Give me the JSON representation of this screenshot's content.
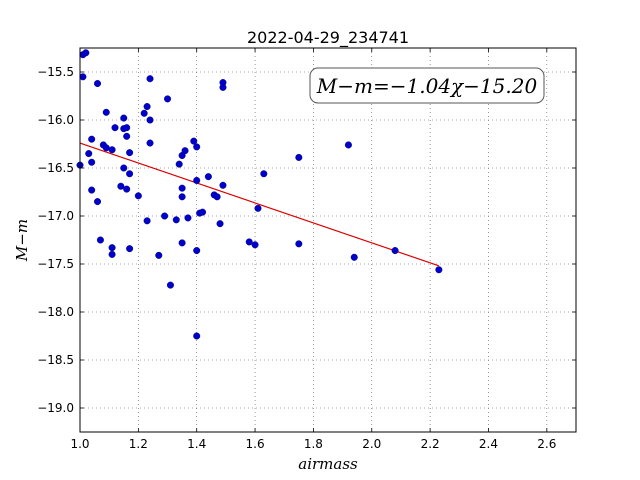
{
  "chart_data": {
    "type": "scatter",
    "title": "2022-04-29_234741",
    "xlabel": "airmass",
    "ylabel": "M−m",
    "xlim": [
      1.0,
      2.7
    ],
    "ylim": [
      -15.25,
      -19.25
    ],
    "y_inverted": true,
    "x_ticks": [
      1.0,
      1.2,
      1.4,
      1.6,
      1.8,
      2.0,
      2.2,
      2.4,
      2.6
    ],
    "x_tick_labels": [
      "1.0",
      "1.2",
      "1.4",
      "1.6",
      "1.8",
      "2.0",
      "2.2",
      "2.4",
      "2.6"
    ],
    "y_ticks": [
      -15.5,
      -16.0,
      -16.5,
      -17.0,
      -17.5,
      -18.0,
      -18.5,
      -19.0
    ],
    "y_tick_labels": [
      "−15.5",
      "−16.0",
      "−16.5",
      "−17.0",
      "−17.5",
      "−18.0",
      "−18.5",
      "−19.0"
    ],
    "grid": true,
    "annotation": "M−m=−1.04χ−15.20",
    "series": [
      {
        "color": "#0000cc",
        "points": [
          [
            1.01,
            -15.32
          ],
          [
            1.02,
            -15.3
          ],
          [
            1.01,
            -15.55
          ],
          [
            1.06,
            -15.62
          ],
          [
            1.09,
            -15.92
          ],
          [
            1.0,
            -16.47
          ],
          [
            1.04,
            -16.2
          ],
          [
            1.03,
            -16.35
          ],
          [
            1.04,
            -16.44
          ],
          [
            1.04,
            -16.73
          ],
          [
            1.06,
            -16.85
          ],
          [
            1.07,
            -17.25
          ],
          [
            1.08,
            -16.26
          ],
          [
            1.09,
            -16.29
          ],
          [
            1.11,
            -16.31
          ],
          [
            1.12,
            -16.08
          ],
          [
            1.14,
            -16.69
          ],
          [
            1.15,
            -15.98
          ],
          [
            1.15,
            -16.09
          ],
          [
            1.16,
            -16.08
          ],
          [
            1.16,
            -16.17
          ],
          [
            1.15,
            -16.5
          ],
          [
            1.16,
            -16.72
          ],
          [
            1.17,
            -16.56
          ],
          [
            1.17,
            -16.34
          ],
          [
            1.11,
            -17.33
          ],
          [
            1.11,
            -17.4
          ],
          [
            1.17,
            -17.34
          ],
          [
            1.2,
            -16.79
          ],
          [
            1.22,
            -15.93
          ],
          [
            1.23,
            -15.86
          ],
          [
            1.24,
            -15.57
          ],
          [
            1.24,
            -16.0
          ],
          [
            1.24,
            -16.24
          ],
          [
            1.23,
            -17.05
          ],
          [
            1.27,
            -17.41
          ],
          [
            1.29,
            -17.0
          ],
          [
            1.3,
            -15.78
          ],
          [
            1.31,
            -17.72
          ],
          [
            1.33,
            -17.04
          ],
          [
            1.34,
            -16.46
          ],
          [
            1.35,
            -16.37
          ],
          [
            1.36,
            -16.32
          ],
          [
            1.35,
            -16.71
          ],
          [
            1.35,
            -16.8
          ],
          [
            1.37,
            -17.02
          ],
          [
            1.35,
            -17.28
          ],
          [
            1.39,
            -16.22
          ],
          [
            1.4,
            -16.28
          ],
          [
            1.4,
            -16.63
          ],
          [
            1.41,
            -16.97
          ],
          [
            1.42,
            -16.96
          ],
          [
            1.4,
            -17.36
          ],
          [
            1.4,
            -18.25
          ],
          [
            1.44,
            -16.59
          ],
          [
            1.46,
            -16.78
          ],
          [
            1.47,
            -16.8
          ],
          [
            1.48,
            -17.08
          ],
          [
            1.49,
            -16.68
          ],
          [
            1.49,
            -15.61
          ],
          [
            1.49,
            -15.66
          ],
          [
            1.58,
            -17.27
          ],
          [
            1.6,
            -17.3
          ],
          [
            1.61,
            -16.92
          ],
          [
            1.63,
            -16.56
          ],
          [
            1.75,
            -16.39
          ],
          [
            1.75,
            -17.29
          ],
          [
            1.92,
            -16.26
          ],
          [
            1.94,
            -17.43
          ],
          [
            2.08,
            -17.36
          ],
          [
            2.23,
            -17.56
          ]
        ]
      }
    ],
    "fit_line": {
      "color": "#dd0000",
      "slope": -1.04,
      "intercept": -15.2,
      "x_range": [
        1.0,
        2.23
      ]
    }
  }
}
